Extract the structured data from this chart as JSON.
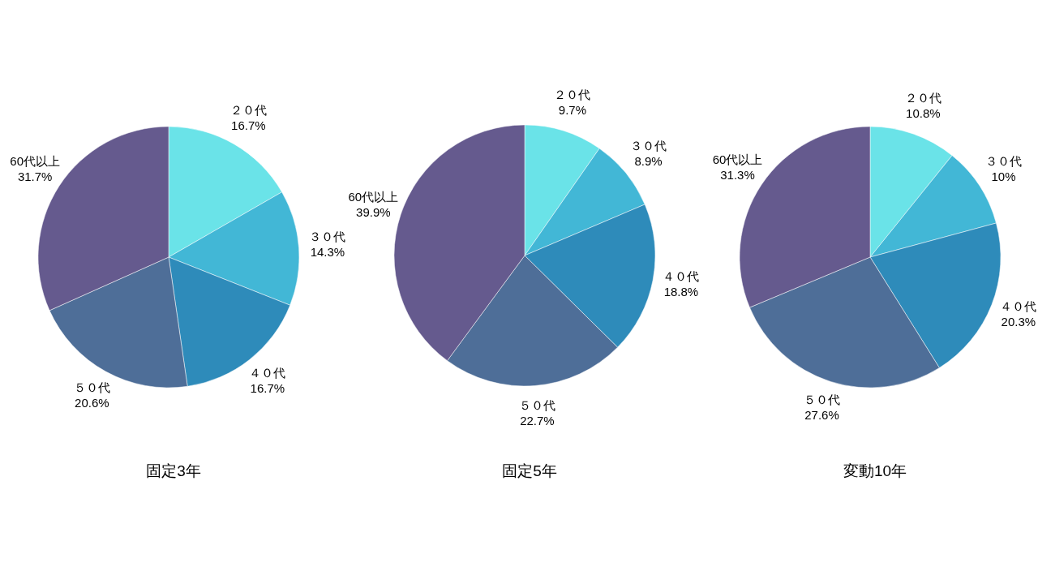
{
  "chart_data": [
    {
      "type": "pie",
      "title": "固定3年",
      "categories": [
        "２０代",
        "３０代",
        "４０代",
        "５０代",
        "60代以上"
      ],
      "values": [
        16.7,
        14.3,
        16.7,
        20.6,
        31.7
      ],
      "value_labels": [
        "16.7%",
        "14.3%",
        "16.7%",
        "20.6%",
        "31.7%"
      ],
      "colors": [
        "#6ae3e8",
        "#42b7d6",
        "#2e8bba",
        "#4e6e98",
        "#655a8e"
      ]
    },
    {
      "type": "pie",
      "title": "固定5年",
      "categories": [
        "２０代",
        "３０代",
        "４０代",
        "５０代",
        "60代以上"
      ],
      "values": [
        9.7,
        8.9,
        18.8,
        22.7,
        39.9
      ],
      "value_labels": [
        "9.7%",
        "8.9%",
        "18.8%",
        "22.7%",
        "39.9%"
      ],
      "colors": [
        "#6ae3e8",
        "#42b7d6",
        "#2e8bba",
        "#4e6e98",
        "#655a8e"
      ]
    },
    {
      "type": "pie",
      "title": "変動10年",
      "categories": [
        "２０代",
        "３０代",
        "４０代",
        "５０代",
        "60代以上"
      ],
      "values": [
        10.8,
        10,
        20.3,
        27.6,
        31.3
      ],
      "value_labels": [
        "10.8%",
        "10%",
        "20.3%",
        "27.6%",
        "31.3%"
      ],
      "colors": [
        "#6ae3e8",
        "#42b7d6",
        "#2e8bba",
        "#4e6e98",
        "#655a8e"
      ]
    }
  ]
}
